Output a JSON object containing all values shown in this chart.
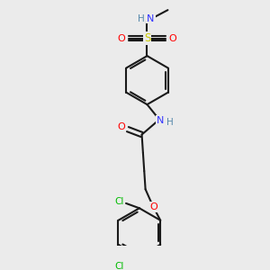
{
  "bg_color": "#ebebeb",
  "bond_color": "#1a1a1a",
  "colors": {
    "N": "#3333ff",
    "O": "#ff0000",
    "S": "#cccc00",
    "Cl": "#00bb00",
    "H": "#5588aa",
    "C": "#1a1a1a"
  },
  "figsize": [
    3.0,
    3.0
  ],
  "dpi": 100
}
